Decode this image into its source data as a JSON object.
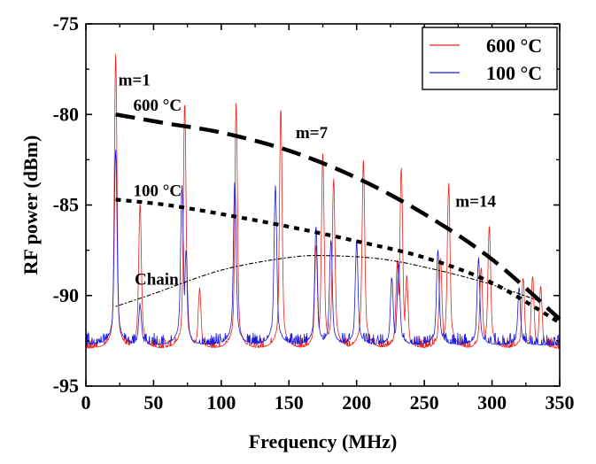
{
  "chart_data": {
    "type": "line",
    "xlabel": "Frequency (MHz)",
    "ylabel": "RF power (dBm)",
    "xlim": [
      0,
      350
    ],
    "ylim": [
      -95,
      -75
    ],
    "xticks": [
      0,
      50,
      100,
      150,
      200,
      250,
      300,
      350
    ],
    "yticks": [
      -95,
      -90,
      -85,
      -80,
      -75
    ],
    "grid": false,
    "legend_position": "top-right",
    "noise_floor": -92.8,
    "series": [
      {
        "name": "600 °C",
        "color": "#e8201a",
        "peaks": [
          {
            "x": 22,
            "y": -78.8
          },
          {
            "x": 40,
            "y": -86.7
          },
          {
            "x": 73,
            "y": -81.5
          },
          {
            "x": 84,
            "y": -90.3
          },
          {
            "x": 111,
            "y": -81.6
          },
          {
            "x": 144,
            "y": -81.8
          },
          {
            "x": 170,
            "y": -88.5
          },
          {
            "x": 175,
            "y": -84.4
          },
          {
            "x": 183,
            "y": -85.6
          },
          {
            "x": 205,
            "y": -84.8
          },
          {
            "x": 230,
            "y": -89.2
          },
          {
            "x": 233,
            "y": -85.0
          },
          {
            "x": 237,
            "y": -89.8
          },
          {
            "x": 262,
            "y": -89.0
          },
          {
            "x": 268,
            "y": -85.8
          },
          {
            "x": 292,
            "y": -89.4
          },
          {
            "x": 298,
            "y": -87.6
          },
          {
            "x": 323,
            "y": -89.9
          },
          {
            "x": 330,
            "y": -89.8
          },
          {
            "x": 336,
            "y": -90.2
          }
        ]
      },
      {
        "name": "100 °C",
        "color": "#1a1ad8",
        "peaks": [
          {
            "x": 22,
            "y": -84.1
          },
          {
            "x": 40,
            "y": -91.0
          },
          {
            "x": 71,
            "y": -85.8
          },
          {
            "x": 74,
            "y": -88.6
          },
          {
            "x": 110,
            "y": -85.6
          },
          {
            "x": 140,
            "y": -85.9
          },
          {
            "x": 170,
            "y": -87.6
          },
          {
            "x": 181,
            "y": -88.2
          },
          {
            "x": 200,
            "y": -88.3
          },
          {
            "x": 226,
            "y": -89.8
          },
          {
            "x": 231,
            "y": -89.2
          },
          {
            "x": 260,
            "y": -88.6
          },
          {
            "x": 290,
            "y": -89.0
          },
          {
            "x": 320,
            "y": -90.3
          }
        ]
      }
    ],
    "envelopes": [
      {
        "label": "600 °C",
        "style": "dashed",
        "points": [
          [
            22,
            -80.0
          ],
          [
            60,
            -80.5
          ],
          [
            100,
            -81.0
          ],
          [
            150,
            -82.0
          ],
          [
            200,
            -83.5
          ],
          [
            250,
            -85.5
          ],
          [
            300,
            -88.0
          ],
          [
            350,
            -91.3
          ]
        ]
      },
      {
        "label": "100 °C",
        "style": "dotted",
        "points": [
          [
            22,
            -84.7
          ],
          [
            60,
            -85.0
          ],
          [
            100,
            -85.5
          ],
          [
            150,
            -86.2
          ],
          [
            200,
            -87.0
          ],
          [
            250,
            -87.9
          ],
          [
            300,
            -89.3
          ],
          [
            350,
            -91.5
          ]
        ]
      },
      {
        "label": "Chain",
        "style": "dash-dot-fine",
        "points": [
          [
            22,
            -90.6
          ],
          [
            50,
            -89.9
          ],
          [
            100,
            -88.6
          ],
          [
            150,
            -87.9
          ],
          [
            180,
            -87.8
          ],
          [
            220,
            -88.0
          ],
          [
            260,
            -88.6
          ],
          [
            300,
            -89.4
          ],
          [
            335,
            -90.3
          ]
        ]
      }
    ],
    "annotations": [
      {
        "text": "m=1",
        "x": 24,
        "y": -78.4
      },
      {
        "text": "600 °C",
        "x": 35,
        "y": -79.8
      },
      {
        "text": "m=7",
        "x": 155,
        "y": -81.3
      },
      {
        "text": "100 °C",
        "x": 35,
        "y": -84.5
      },
      {
        "text": "m=14",
        "x": 273,
        "y": -85.1
      },
      {
        "text": "Chain",
        "x": 36,
        "y": -89.4
      }
    ]
  }
}
